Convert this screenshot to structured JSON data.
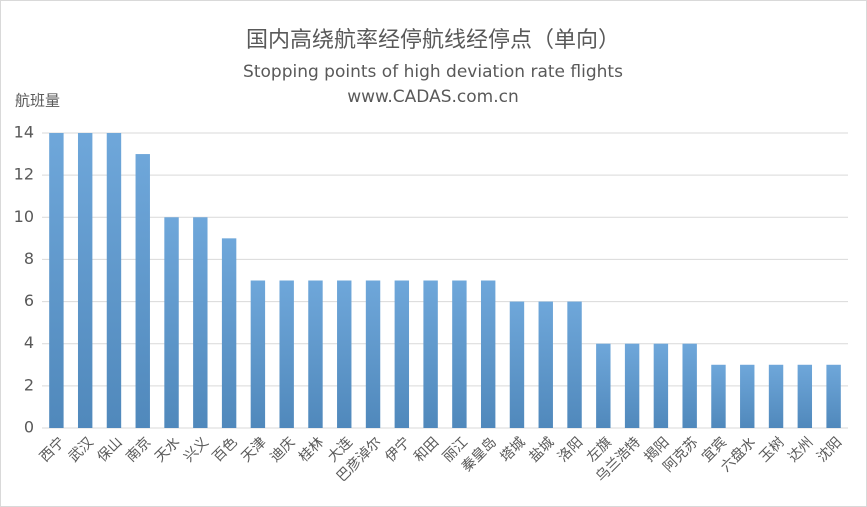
{
  "chart_data": {
    "type": "bar",
    "title": "国内高绕航率经停航线经停点（单向）",
    "subtitle": "Stopping points of high deviation rate flights",
    "source": "www.CADAS.com.cn",
    "y_label": "航班量",
    "categories": [
      "西宁",
      "武汉",
      "保山",
      "南京",
      "天水",
      "兴义",
      "百色",
      "天津",
      "迪庆",
      "桂林",
      "大连",
      "巴彦淖尔",
      "伊宁",
      "和田",
      "丽江",
      "秦皇岛",
      "塔城",
      "盐城",
      "洛阳",
      "左旗",
      "乌兰浩特",
      "揭阳",
      "阿克苏",
      "宜宾",
      "六盘水",
      "玉树",
      "达州",
      "沈阳"
    ],
    "values": [
      14,
      14,
      14,
      13,
      10,
      10,
      9,
      7,
      7,
      7,
      7,
      7,
      7,
      7,
      7,
      7,
      6,
      6,
      6,
      4,
      4,
      4,
      4,
      3,
      3,
      3,
      3,
      3
    ],
    "color": "#5b9bd5",
    "ylim": [
      0,
      14
    ],
    "yticks": [
      0,
      2,
      4,
      6,
      8,
      10,
      12,
      14
    ],
    "grid": true
  }
}
